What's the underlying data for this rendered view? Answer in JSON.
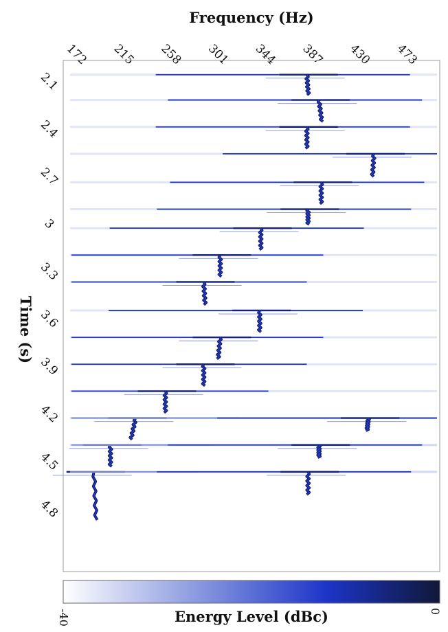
{
  "chart_data": {
    "type": "heatmap",
    "title": "",
    "xlabel": "Frequency (Hz)",
    "ylabel": "Time (s)",
    "x_ticks": [
      172,
      215,
      258,
      301,
      344,
      387,
      430,
      473
    ],
    "x_tick_labels": [
      "172",
      "215",
      "258",
      "301",
      "344",
      "387",
      "430",
      "473"
    ],
    "y_ticks": [
      2.1,
      2.4,
      2.7,
      3.0,
      3.3,
      3.6,
      3.9,
      4.2,
      4.5,
      4.8
    ],
    "y_tick_labels": [
      "2.1",
      "2.4",
      "2.7",
      "3",
      "3.3",
      "3.6",
      "3.9",
      "4.2",
      "4.5",
      "4.8"
    ],
    "xlim": [
      162,
      505
    ],
    "ylim": [
      1.95,
      5.18
    ],
    "colorbar": {
      "label": "Energy Level (dBc)",
      "range": [
        -40,
        0
      ],
      "tick_labels": [
        "-40",
        "0"
      ],
      "colors": [
        "#ffffff",
        "#1c35c8",
        "#101838"
      ]
    },
    "notes": [
      {
        "onset": 2.04,
        "end": 2.2,
        "freq": 384,
        "drift": 2
      },
      {
        "onset": 2.2,
        "end": 2.37,
        "freq": 395,
        "drift": 4
      },
      {
        "onset": 2.37,
        "end": 2.54,
        "freq": 384,
        "drift": 0
      },
      {
        "onset": 2.54,
        "end": 2.72,
        "freq": 445,
        "drift": -2
      },
      {
        "onset": 2.72,
        "end": 2.89,
        "freq": 397,
        "drift": 0
      },
      {
        "onset": 2.89,
        "end": 3.01,
        "freq": 385,
        "drift": 0
      },
      {
        "onset": 3.01,
        "end": 3.18,
        "freq": 342,
        "drift": 0
      },
      {
        "onset": 3.18,
        "end": 3.35,
        "freq": 305,
        "drift": 0
      },
      {
        "onset": 3.35,
        "end": 3.53,
        "freq": 290,
        "drift": 2
      },
      {
        "onset": 3.53,
        "end": 3.7,
        "freq": 341,
        "drift": 0
      },
      {
        "onset": 3.7,
        "end": 3.87,
        "freq": 305,
        "drift": -3
      },
      {
        "onset": 3.87,
        "end": 4.04,
        "freq": 290,
        "drift": 0
      },
      {
        "onset": 4.04,
        "end": 4.21,
        "freq": 255,
        "drift": 0
      },
      {
        "onset": 4.21,
        "end": 4.38,
        "freq": 228,
        "drift": -7
      },
      {
        "onset": 4.21,
        "end": 4.31,
        "freq": 440,
        "drift": -2
      },
      {
        "onset": 4.38,
        "end": 4.55,
        "freq": 205,
        "drift": 0
      },
      {
        "onset": 4.38,
        "end": 4.48,
        "freq": 395,
        "drift": 0
      },
      {
        "onset": 4.55,
        "end": 4.93,
        "freq": 190,
        "drift": 3
      },
      {
        "onset": 4.55,
        "end": 4.73,
        "freq": 385,
        "drift": 0
      }
    ]
  }
}
